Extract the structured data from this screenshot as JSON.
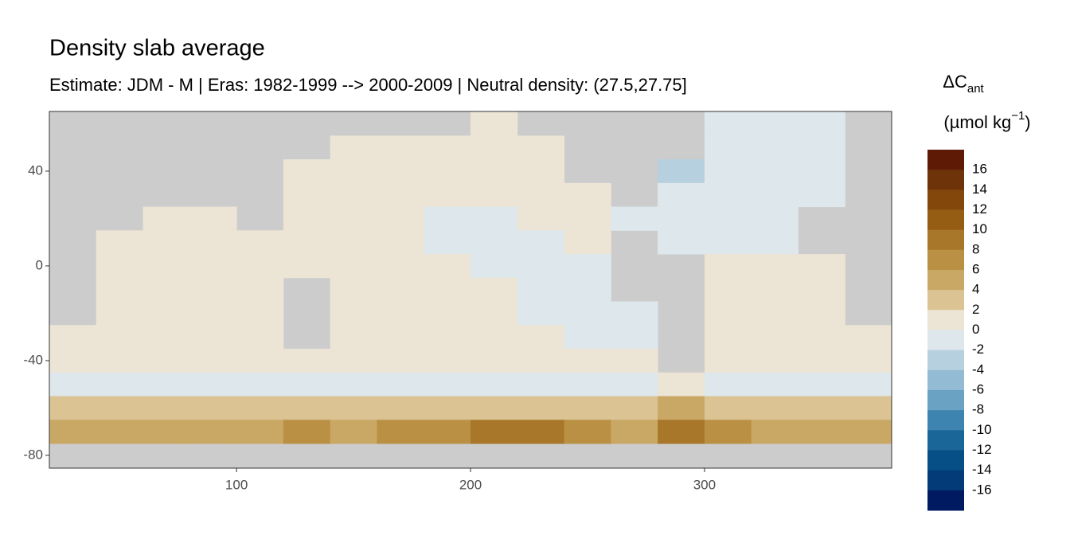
{
  "chart_data": {
    "type": "raster",
    "title": "Density slab average",
    "subtitle": "Estimate: JDM - M | Eras: 1982-1999 --> 2000-2009 | Neutral density: (27.5,27.75]",
    "x": [
      30,
      50,
      70,
      90,
      110,
      130,
      150,
      170,
      190,
      210,
      230,
      250,
      270,
      290,
      310,
      330,
      350,
      370
    ],
    "y": [
      60,
      50,
      40,
      30,
      20,
      10,
      0,
      -10,
      -20,
      -30,
      -40,
      -50,
      -60,
      -70,
      -80
    ],
    "values": [
      [
        null,
        null,
        null,
        null,
        null,
        null,
        null,
        null,
        null,
        1,
        null,
        null,
        null,
        null,
        -1,
        -1,
        -1,
        null
      ],
      [
        null,
        null,
        null,
        null,
        null,
        null,
        1,
        1,
        1,
        1,
        1,
        null,
        null,
        null,
        -1,
        -1,
        -1,
        null
      ],
      [
        null,
        null,
        null,
        null,
        null,
        1,
        1,
        1,
        1,
        1,
        1,
        null,
        null,
        -3,
        -1,
        -1,
        -1,
        null
      ],
      [
        null,
        null,
        null,
        null,
        null,
        1,
        1,
        1,
        1,
        1,
        1,
        1,
        null,
        -1,
        -1,
        -1,
        -1,
        null
      ],
      [
        null,
        null,
        1,
        1,
        null,
        1,
        1,
        1,
        -1,
        -1,
        1,
        1,
        -1,
        -1,
        -1,
        -1,
        null,
        null
      ],
      [
        null,
        1,
        1,
        1,
        1,
        1,
        1,
        1,
        -1,
        -1,
        -1,
        1,
        null,
        -1,
        -1,
        -1,
        null,
        null
      ],
      [
        null,
        1,
        1,
        1,
        1,
        1,
        1,
        1,
        1,
        -1,
        -1,
        -1,
        null,
        null,
        1,
        1,
        1,
        null
      ],
      [
        null,
        1,
        1,
        1,
        1,
        null,
        1,
        1,
        1,
        1,
        -1,
        -1,
        null,
        null,
        1,
        1,
        1,
        null
      ],
      [
        null,
        1,
        1,
        1,
        1,
        null,
        1,
        1,
        1,
        1,
        -1,
        -1,
        -1,
        null,
        1,
        1,
        1,
        null
      ],
      [
        1,
        1,
        1,
        1,
        1,
        null,
        1,
        1,
        1,
        1,
        1,
        -1,
        -1,
        null,
        1,
        1,
        1,
        1
      ],
      [
        1,
        1,
        1,
        1,
        1,
        1,
        1,
        1,
        1,
        1,
        1,
        1,
        1,
        null,
        1,
        1,
        1,
        1
      ],
      [
        -1,
        -1,
        -1,
        -1,
        -1,
        -1,
        -1,
        -1,
        -1,
        -1,
        -1,
        -1,
        -1,
        1,
        -1,
        -1,
        -1,
        -1
      ],
      [
        3,
        3,
        3,
        3,
        3,
        3,
        3,
        3,
        3,
        3,
        3,
        3,
        3,
        5,
        3,
        3,
        3,
        3
      ],
      [
        5,
        5,
        5,
        5,
        5,
        7,
        5,
        7,
        7,
        9,
        9,
        7,
        5,
        9,
        7,
        5,
        5,
        5
      ],
      [
        null,
        null,
        null,
        null,
        null,
        null,
        null,
        null,
        null,
        null,
        null,
        null,
        null,
        null,
        null,
        null,
        null,
        null
      ]
    ],
    "xlim": [
      20,
      380
    ],
    "ylim": [
      -85.4,
      65.2
    ],
    "xticks": [
      100,
      200,
      300
    ],
    "yticks": [
      40,
      0,
      -40,
      -80
    ],
    "legend": {
      "title": [
        "ΔC",
        "ant"
      ],
      "unit": [
        "(µmol kg",
        "−1",
        ")"
      ],
      "breaks": [
        16,
        14,
        12,
        10,
        8,
        6,
        4,
        2,
        0,
        -2,
        -4,
        -6,
        -8,
        -10,
        -12,
        -14,
        -16
      ],
      "colors": [
        "#5f1a05",
        "#6e3308",
        "#83470c",
        "#955d14",
        "#a9772a",
        "#b99044",
        "#c9a865",
        "#dbc393",
        "#ece4d5",
        "#dde7ec",
        "#b7d0e0",
        "#93bbd4",
        "#6aa2c3",
        "#3d84b0",
        "#1a6699",
        "#054f86",
        "#033b78",
        "#001a62"
      ]
    }
  }
}
